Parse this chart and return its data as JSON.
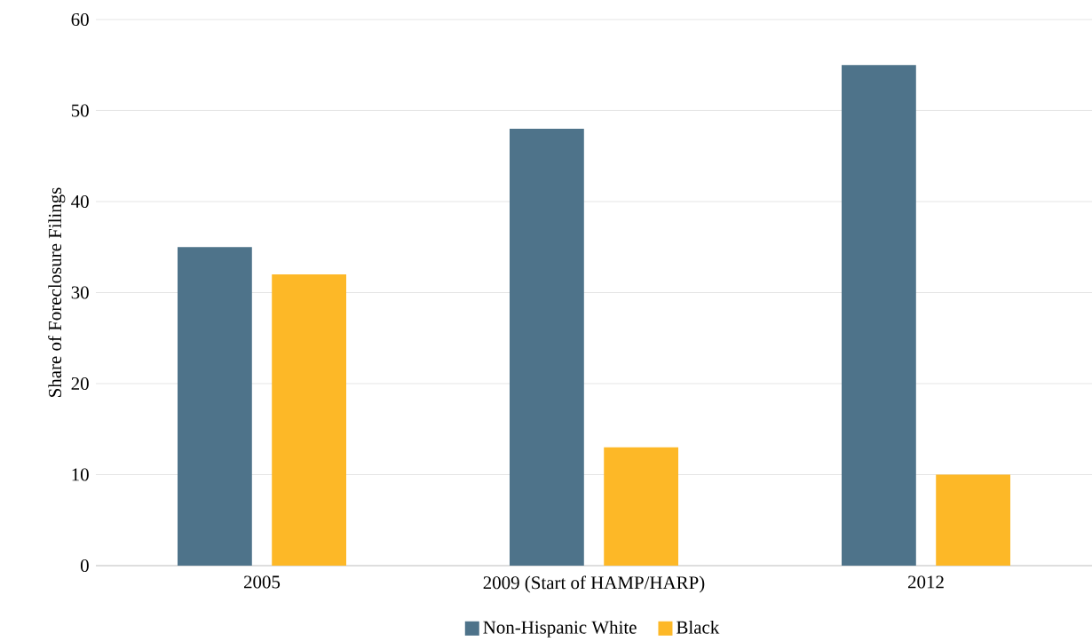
{
  "chart_data": {
    "type": "bar",
    "ylabel": "Share of Foreclosure Filings",
    "categories": [
      "2005",
      "2009 (Start of HAMP/HARP)",
      "2012"
    ],
    "series": [
      {
        "name": "Non-Hispanic White",
        "color": "#4e738a",
        "values": [
          35,
          48,
          55
        ]
      },
      {
        "name": "Black",
        "color": "#fdb827",
        "values": [
          32,
          13,
          10
        ]
      }
    ],
    "ylim": [
      0,
      60
    ],
    "yticks": [
      0,
      10,
      20,
      30,
      40,
      50,
      60
    ],
    "grid": "y",
    "legend": "bottom"
  }
}
